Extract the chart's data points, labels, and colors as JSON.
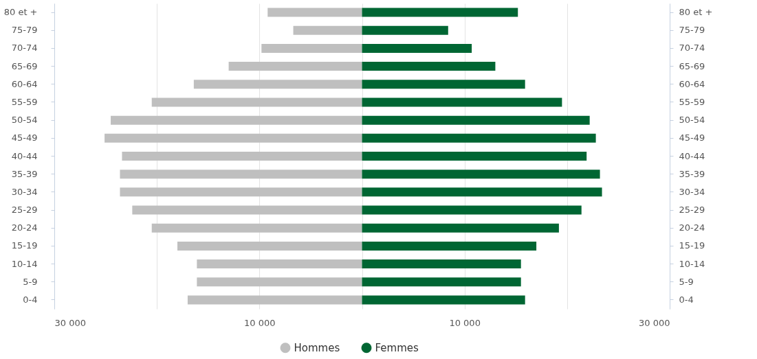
{
  "chart_data": {
    "type": "bar",
    "orientation": "horizontal",
    "stacked": true,
    "categories": [
      "80 et +",
      "75-79",
      "70-74",
      "65-69",
      "60-64",
      "55-59",
      "50-54",
      "45-49",
      "40-44",
      "35-39",
      "30-34",
      "25-29",
      "20-24",
      "15-19",
      "10-14",
      "5-9",
      "0-4"
    ],
    "series": [
      {
        "name": "Hommes",
        "color": "#bfbfbf",
        "values": [
          -9200,
          -6700,
          -9800,
          -13000,
          -16400,
          -20500,
          -24500,
          -25100,
          -23400,
          -23600,
          -23600,
          -22400,
          -20500,
          -18000,
          -16100,
          -16100,
          -17000
        ]
      },
      {
        "name": "Femmes",
        "color": "#006633",
        "values": [
          15200,
          8400,
          10700,
          13000,
          15900,
          19500,
          22200,
          22800,
          21900,
          23200,
          23400,
          21400,
          19200,
          17000,
          15500,
          15500,
          15900
        ]
      }
    ],
    "xlim": [
      -30000,
      30000
    ],
    "xticks": [
      {
        "value": -30000,
        "label": "30 000"
      },
      {
        "value": -20000,
        "label": null
      },
      {
        "value": -10000,
        "label": "10 000"
      },
      {
        "value": 0,
        "label": null
      },
      {
        "value": 10000,
        "label": "10 000"
      },
      {
        "value": 20000,
        "label": null
      },
      {
        "value": 30000,
        "label": "30 000"
      }
    ],
    "grid": "x",
    "legend": "bottom"
  }
}
